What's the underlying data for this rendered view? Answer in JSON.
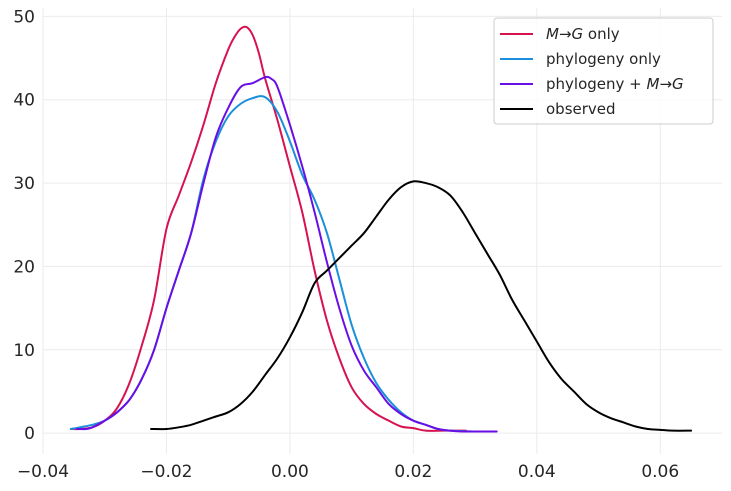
{
  "chart_data": {
    "type": "line",
    "title": "",
    "xlabel": "",
    "ylabel": "",
    "xlim": [
      -0.04,
      0.07
    ],
    "ylim": [
      -2.5,
      51
    ],
    "grid": true,
    "legend_position": "top-right",
    "x_ticks": [
      -0.04,
      -0.02,
      0.0,
      0.02,
      0.04,
      0.06
    ],
    "x_tick_labels": [
      "−0.04",
      "−0.02",
      "0.00",
      "0.02",
      "0.04",
      "0.06"
    ],
    "y_ticks": [
      0,
      10,
      20,
      30,
      40,
      50
    ],
    "y_tick_labels": [
      "0",
      "10",
      "20",
      "30",
      "40",
      "50"
    ],
    "series": [
      {
        "name": "M→G only",
        "legend": {
          "italic_before": "M",
          "arrow": "→",
          "italic_after": "G",
          "rest": " only"
        },
        "color": "#d6124f",
        "points": [
          [
            -0.0355,
            0.5
          ],
          [
            -0.034,
            0.5
          ],
          [
            -0.032,
            0.7
          ],
          [
            -0.03,
            1.5
          ],
          [
            -0.028,
            3.0
          ],
          [
            -0.026,
            6.0
          ],
          [
            -0.024,
            10.5
          ],
          [
            -0.022,
            16.0
          ],
          [
            -0.02,
            24.5
          ],
          [
            -0.018,
            28.5
          ],
          [
            -0.016,
            32.5
          ],
          [
            -0.014,
            37.0
          ],
          [
            -0.012,
            42.0
          ],
          [
            -0.01,
            46.0
          ],
          [
            -0.009,
            47.5
          ],
          [
            -0.008,
            48.5
          ],
          [
            -0.007,
            48.7
          ],
          [
            -0.006,
            47.7
          ],
          [
            -0.005,
            45.5
          ],
          [
            -0.004,
            42.5
          ],
          [
            -0.002,
            37.5
          ],
          [
            0.0,
            32.0
          ],
          [
            0.002,
            26.5
          ],
          [
            0.004,
            19.5
          ],
          [
            0.006,
            13.5
          ],
          [
            0.008,
            9.0
          ],
          [
            0.01,
            5.5
          ],
          [
            0.012,
            3.5
          ],
          [
            0.014,
            2.3
          ],
          [
            0.016,
            1.5
          ],
          [
            0.018,
            0.8
          ],
          [
            0.02,
            0.6
          ],
          [
            0.022,
            0.3
          ],
          [
            0.025,
            0.3
          ],
          [
            0.0285,
            0.3
          ]
        ]
      },
      {
        "name": "phylogeny only",
        "legend": {
          "rest": "phylogeny only"
        },
        "color": "#1b8fdc",
        "points": [
          [
            -0.0355,
            0.5
          ],
          [
            -0.034,
            0.7
          ],
          [
            -0.032,
            1.0
          ],
          [
            -0.03,
            1.5
          ],
          [
            -0.028,
            2.5
          ],
          [
            -0.026,
            4.0
          ],
          [
            -0.024,
            6.5
          ],
          [
            -0.022,
            10.0
          ],
          [
            -0.02,
            15.0
          ],
          [
            -0.018,
            19.5
          ],
          [
            -0.016,
            24.0
          ],
          [
            -0.014,
            30.5
          ],
          [
            -0.012,
            35.0
          ],
          [
            -0.01,
            38.0
          ],
          [
            -0.008,
            39.5
          ],
          [
            -0.006,
            40.2
          ],
          [
            -0.004,
            40.3
          ],
          [
            -0.002,
            38.5
          ],
          [
            0.0,
            35.0
          ],
          [
            0.002,
            31.0
          ],
          [
            0.004,
            28.0
          ],
          [
            0.006,
            24.0
          ],
          [
            0.008,
            18.5
          ],
          [
            0.01,
            13.0
          ],
          [
            0.012,
            9.0
          ],
          [
            0.014,
            6.0
          ],
          [
            0.016,
            4.0
          ],
          [
            0.018,
            2.5
          ],
          [
            0.02,
            1.5
          ],
          [
            0.022,
            1.0
          ],
          [
            0.024,
            0.5
          ],
          [
            0.026,
            0.3
          ],
          [
            0.03,
            0.2
          ]
        ]
      },
      {
        "name": "phylogeny + M→G",
        "legend": {
          "rest_before": "phylogeny + ",
          "italic_before": "M",
          "arrow": "→",
          "italic_after": "G"
        },
        "color": "#6a0ee6",
        "points": [
          [
            -0.0345,
            0.5
          ],
          [
            -0.033,
            0.5
          ],
          [
            -0.032,
            0.7
          ],
          [
            -0.03,
            1.5
          ],
          [
            -0.028,
            2.5
          ],
          [
            -0.026,
            4.0
          ],
          [
            -0.024,
            6.5
          ],
          [
            -0.022,
            10.0
          ],
          [
            -0.02,
            15.0
          ],
          [
            -0.018,
            19.5
          ],
          [
            -0.016,
            24.0
          ],
          [
            -0.014,
            30.0
          ],
          [
            -0.012,
            35.5
          ],
          [
            -0.01,
            39.0
          ],
          [
            -0.008,
            41.5
          ],
          [
            -0.006,
            42.0
          ],
          [
            -0.004,
            42.7
          ],
          [
            -0.003,
            42.5
          ],
          [
            -0.002,
            41.5
          ],
          [
            0.0,
            37.0
          ],
          [
            0.002,
            32.0
          ],
          [
            0.004,
            26.5
          ],
          [
            0.006,
            20.5
          ],
          [
            0.008,
            15.0
          ],
          [
            0.01,
            10.5
          ],
          [
            0.012,
            7.5
          ],
          [
            0.014,
            5.5
          ],
          [
            0.016,
            3.5
          ],
          [
            0.018,
            2.3
          ],
          [
            0.02,
            1.5
          ],
          [
            0.022,
            1.0
          ],
          [
            0.024,
            0.5
          ],
          [
            0.026,
            0.3
          ],
          [
            0.028,
            0.2
          ],
          [
            0.0335,
            0.2
          ]
        ]
      },
      {
        "name": "observed",
        "legend": {
          "rest": "observed"
        },
        "color": "#000000",
        "points": [
          [
            -0.0225,
            0.5
          ],
          [
            -0.02,
            0.5
          ],
          [
            -0.018,
            0.7
          ],
          [
            -0.016,
            1.0
          ],
          [
            -0.014,
            1.5
          ],
          [
            -0.012,
            2.0
          ],
          [
            -0.01,
            2.5
          ],
          [
            -0.008,
            3.5
          ],
          [
            -0.006,
            5.0
          ],
          [
            -0.004,
            7.0
          ],
          [
            -0.002,
            9.0
          ],
          [
            0.0,
            11.5
          ],
          [
            0.002,
            14.5
          ],
          [
            0.004,
            18.0
          ],
          [
            0.006,
            19.5
          ],
          [
            0.008,
            21.0
          ],
          [
            0.01,
            22.5
          ],
          [
            0.012,
            24.0
          ],
          [
            0.014,
            26.0
          ],
          [
            0.016,
            28.0
          ],
          [
            0.018,
            29.5
          ],
          [
            0.02,
            30.2
          ],
          [
            0.022,
            30.0
          ],
          [
            0.024,
            29.5
          ],
          [
            0.026,
            28.5
          ],
          [
            0.028,
            26.5
          ],
          [
            0.03,
            24.0
          ],
          [
            0.032,
            21.5
          ],
          [
            0.034,
            19.0
          ],
          [
            0.036,
            16.0
          ],
          [
            0.038,
            13.5
          ],
          [
            0.04,
            11.0
          ],
          [
            0.042,
            8.5
          ],
          [
            0.044,
            6.5
          ],
          [
            0.046,
            5.0
          ],
          [
            0.048,
            3.5
          ],
          [
            0.05,
            2.5
          ],
          [
            0.052,
            1.8
          ],
          [
            0.054,
            1.3
          ],
          [
            0.056,
            0.8
          ],
          [
            0.058,
            0.5
          ],
          [
            0.06,
            0.4
          ],
          [
            0.062,
            0.3
          ],
          [
            0.065,
            0.3
          ]
        ]
      }
    ]
  }
}
